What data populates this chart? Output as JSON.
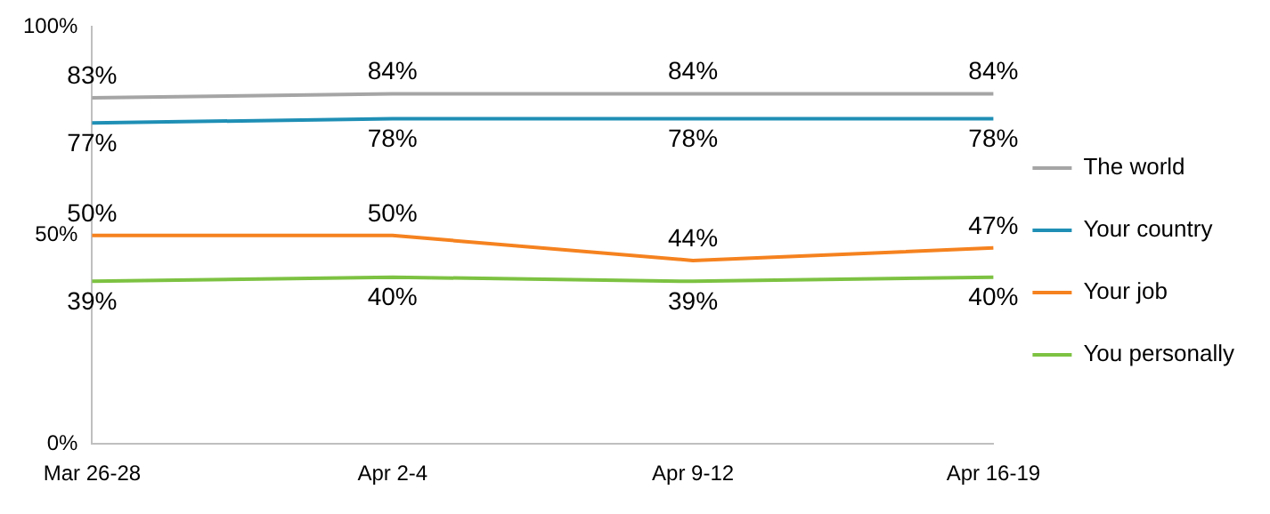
{
  "chart_data": {
    "type": "line",
    "categories": [
      "Mar 26-28",
      "Apr 2-4",
      "Apr 9-12",
      "Apr 16-19"
    ],
    "series": [
      {
        "name": "The world",
        "color": "#a5a5a5",
        "values": [
          83,
          84,
          84,
          84
        ],
        "value_labels": [
          "83%",
          "84%",
          "84%",
          "84%"
        ]
      },
      {
        "name": "Your country",
        "color": "#1f8fb5",
        "values": [
          77,
          78,
          78,
          78
        ],
        "value_labels": [
          "77%",
          "78%",
          "78%",
          "78%"
        ]
      },
      {
        "name": "Your job",
        "color": "#f5821f",
        "values": [
          50,
          50,
          44,
          47
        ],
        "value_labels": [
          "50%",
          "50%",
          "44%",
          "47%"
        ]
      },
      {
        "name": "You personally",
        "color": "#7dc242",
        "values": [
          39,
          40,
          39,
          40
        ],
        "value_labels": [
          "39%",
          "40%",
          "39%",
          "40%"
        ]
      }
    ],
    "ylim": [
      0,
      100
    ],
    "yticks": [
      {
        "value": 0,
        "label": "0%"
      },
      {
        "value": 50,
        "label": "50%"
      },
      {
        "value": 100,
        "label": "100%"
      }
    ],
    "grid": false,
    "legend": "right",
    "marker": "none",
    "line_style": "solid"
  }
}
